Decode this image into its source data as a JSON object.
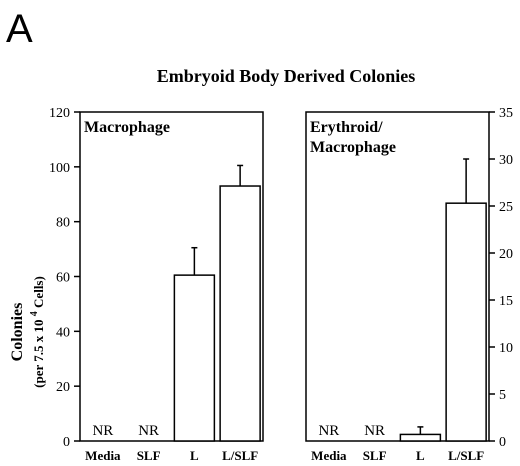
{
  "panel_letter": "A",
  "chart_data": [
    {
      "type": "bar",
      "title": "Embryoid Body Derived Colonies",
      "panel_label": "Macrophage",
      "ylabel_main": "Colonies",
      "ylabel_sub_prefix": "(per 7.5 x 10",
      "ylabel_sub_exp": "4",
      "ylabel_sub_suffix": " Cells)",
      "ylim": [
        0,
        120
      ],
      "yticks": [
        "0",
        "20",
        "40",
        "60",
        "80",
        "100",
        "120"
      ],
      "axis_side": "left",
      "categories": [
        "Media",
        "SLF",
        "L",
        "L/SLF"
      ],
      "values": [
        0,
        0,
        60.5,
        93
      ],
      "errors": [
        0,
        0,
        10,
        7.5
      ],
      "bar_labels": [
        "NR",
        "NR",
        "",
        ""
      ],
      "grid": false
    },
    {
      "type": "bar",
      "panel_label_lines": [
        "Erythroid/",
        "Macrophage"
      ],
      "ylim": [
        0,
        35
      ],
      "yticks": [
        "0",
        "5",
        "10",
        "15",
        "20",
        "25",
        "30",
        "35"
      ],
      "axis_side": "right",
      "categories": [
        "Media",
        "SLF",
        "L",
        "L/SLF"
      ],
      "values": [
        0,
        0,
        0.7,
        25.3
      ],
      "errors": [
        0,
        0,
        0.8,
        4.7
      ],
      "bar_labels": [
        "NR",
        "NR",
        "",
        ""
      ],
      "grid": false
    }
  ]
}
